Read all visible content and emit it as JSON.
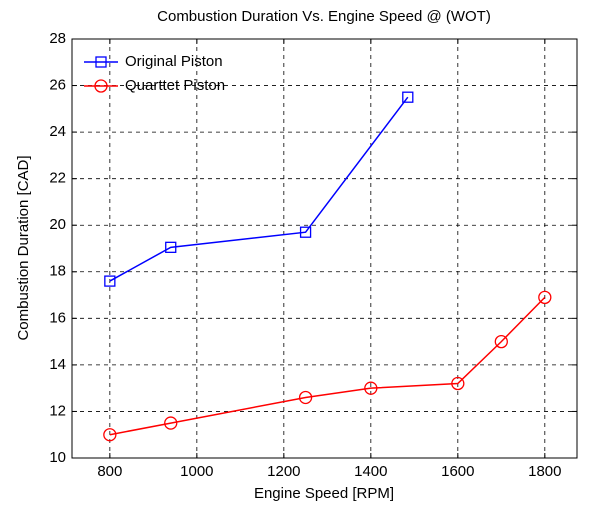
{
  "chart_data": {
    "type": "line",
    "title": "Combustion Duration Vs. Engine Speed @ (WOT)",
    "x_label": "Engine Speed [RPM]",
    "y_label": "Combustion Duration [CAD]",
    "series": [
      {
        "name": "Original Piston",
        "color": "#0000ff",
        "marker": "square",
        "x": [
          800,
          940,
          1250,
          1485
        ],
        "values": [
          17.6,
          19.05,
          19.7,
          25.5
        ]
      },
      {
        "name": "Quarttet Piston",
        "color": "#ff0000",
        "marker": "circle",
        "x": [
          800,
          940,
          1250,
          1400,
          1600,
          1700,
          1800
        ],
        "values": [
          11.0,
          11.5,
          12.6,
          13.0,
          13.2,
          15.0,
          16.9
        ]
      }
    ],
    "xlim": [
      713,
      1874
    ],
    "xticks": [
      800,
      1000,
      1200,
      1400,
      1600,
      1800
    ],
    "ylim": [
      10,
      28
    ],
    "yticks": [
      10,
      12,
      14,
      16,
      18,
      20,
      22,
      24,
      26,
      28
    ],
    "grid": true,
    "legend": "upper-left"
  }
}
